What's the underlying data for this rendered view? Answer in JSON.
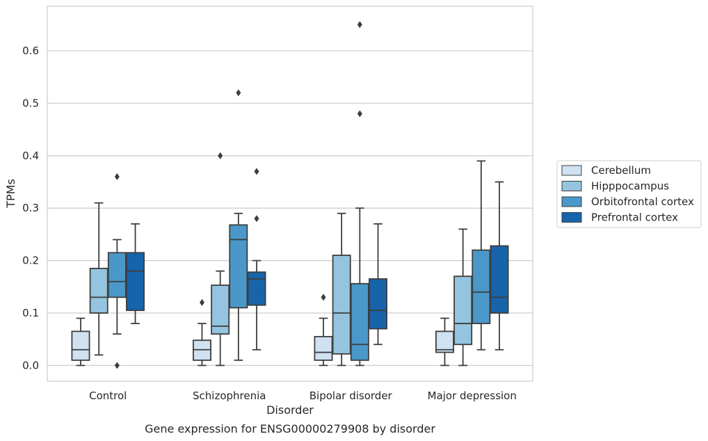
{
  "chart_data": {
    "type": "box",
    "caption": "Gene expression for ENSG00000279908 by disorder",
    "xlabel": "Disorder",
    "ylabel": "TPMs",
    "ylim": [
      -0.03,
      0.685
    ],
    "yticks": [
      0.0,
      0.1,
      0.2,
      0.3,
      0.4,
      0.5,
      0.6
    ],
    "ytick_labels": [
      "0.0",
      "0.1",
      "0.2",
      "0.3",
      "0.4",
      "0.5",
      "0.6"
    ],
    "categories": [
      "Control",
      "Schizophrenia",
      "Bipolar disorder",
      "Major depression"
    ],
    "grid": "horizontal",
    "legend_placement": "outside-right",
    "series": [
      {
        "name": "Cerebellum",
        "color": "#d0e1f2",
        "boxes": [
          {
            "whislo": 0.0,
            "q1": 0.01,
            "med": 0.03,
            "q3": 0.065,
            "whishi": 0.09,
            "fliers": []
          },
          {
            "whislo": 0.0,
            "q1": 0.01,
            "med": 0.03,
            "q3": 0.048,
            "whishi": 0.08,
            "fliers": [
              0.12
            ]
          },
          {
            "whislo": 0.0,
            "q1": 0.01,
            "med": 0.025,
            "q3": 0.055,
            "whishi": 0.09,
            "fliers": [
              0.13
            ]
          },
          {
            "whislo": 0.0,
            "q1": 0.025,
            "med": 0.03,
            "q3": 0.065,
            "whishi": 0.09,
            "fliers": []
          }
        ]
      },
      {
        "name": "Hipppocampus",
        "color": "#94c4df",
        "boxes": [
          {
            "whislo": 0.02,
            "q1": 0.1,
            "med": 0.13,
            "q3": 0.185,
            "whishi": 0.31,
            "fliers": []
          },
          {
            "whislo": 0.0,
            "q1": 0.06,
            "med": 0.075,
            "q3": 0.153,
            "whishi": 0.18,
            "fliers": [
              0.4
            ]
          },
          {
            "whislo": 0.0,
            "q1": 0.022,
            "med": 0.1,
            "q3": 0.21,
            "whishi": 0.29,
            "fliers": []
          },
          {
            "whislo": 0.0,
            "q1": 0.04,
            "med": 0.08,
            "q3": 0.17,
            "whishi": 0.26,
            "fliers": []
          }
        ]
      },
      {
        "name": "Orbitofrontal cortex",
        "color": "#4a98c9",
        "boxes": [
          {
            "whislo": 0.06,
            "q1": 0.13,
            "med": 0.16,
            "q3": 0.215,
            "whishi": 0.24,
            "fliers": [
              0.36,
              0.0
            ]
          },
          {
            "whislo": 0.01,
            "q1": 0.11,
            "med": 0.24,
            "q3": 0.268,
            "whishi": 0.29,
            "fliers": [
              0.52
            ]
          },
          {
            "whislo": 0.0,
            "q1": 0.01,
            "med": 0.04,
            "q3": 0.156,
            "whishi": 0.3,
            "fliers": [
              0.48,
              0.65
            ]
          },
          {
            "whislo": 0.03,
            "q1": 0.08,
            "med": 0.14,
            "q3": 0.22,
            "whishi": 0.39,
            "fliers": []
          }
        ]
      },
      {
        "name": "Prefrontal cortex",
        "color": "#1764ab",
        "boxes": [
          {
            "whislo": 0.08,
            "q1": 0.105,
            "med": 0.18,
            "q3": 0.215,
            "whishi": 0.27,
            "fliers": []
          },
          {
            "whislo": 0.03,
            "q1": 0.115,
            "med": 0.165,
            "q3": 0.178,
            "whishi": 0.2,
            "fliers": [
              0.37,
              0.28
            ]
          },
          {
            "whislo": 0.04,
            "q1": 0.07,
            "med": 0.105,
            "q3": 0.165,
            "whishi": 0.27,
            "fliers": []
          },
          {
            "whislo": 0.03,
            "q1": 0.1,
            "med": 0.13,
            "q3": 0.228,
            "whishi": 0.35,
            "fliers": []
          }
        ]
      }
    ]
  }
}
